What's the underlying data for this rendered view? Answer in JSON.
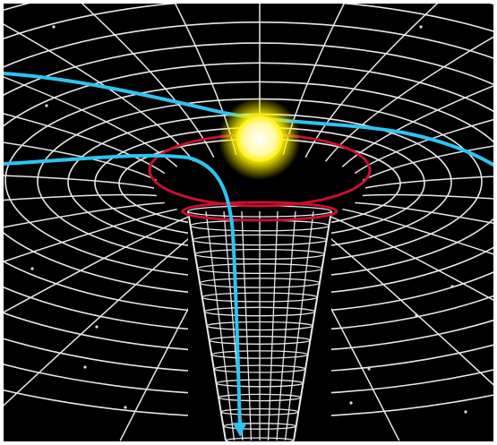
{
  "diagram": {
    "labels": [],
    "colors": {
      "space": "#000000",
      "frame": "#ffffff",
      "grid": "#e8e8e8",
      "event_horizon": "#c8102e",
      "light_path": "#2ec4ef",
      "star_core": "#fffde0",
      "star_glow": "#fff200",
      "background_stars": "#dcdcdc"
    },
    "icons": {
      "star": "glowing-star-icon",
      "arrow": "arrow-down-icon"
    }
  }
}
